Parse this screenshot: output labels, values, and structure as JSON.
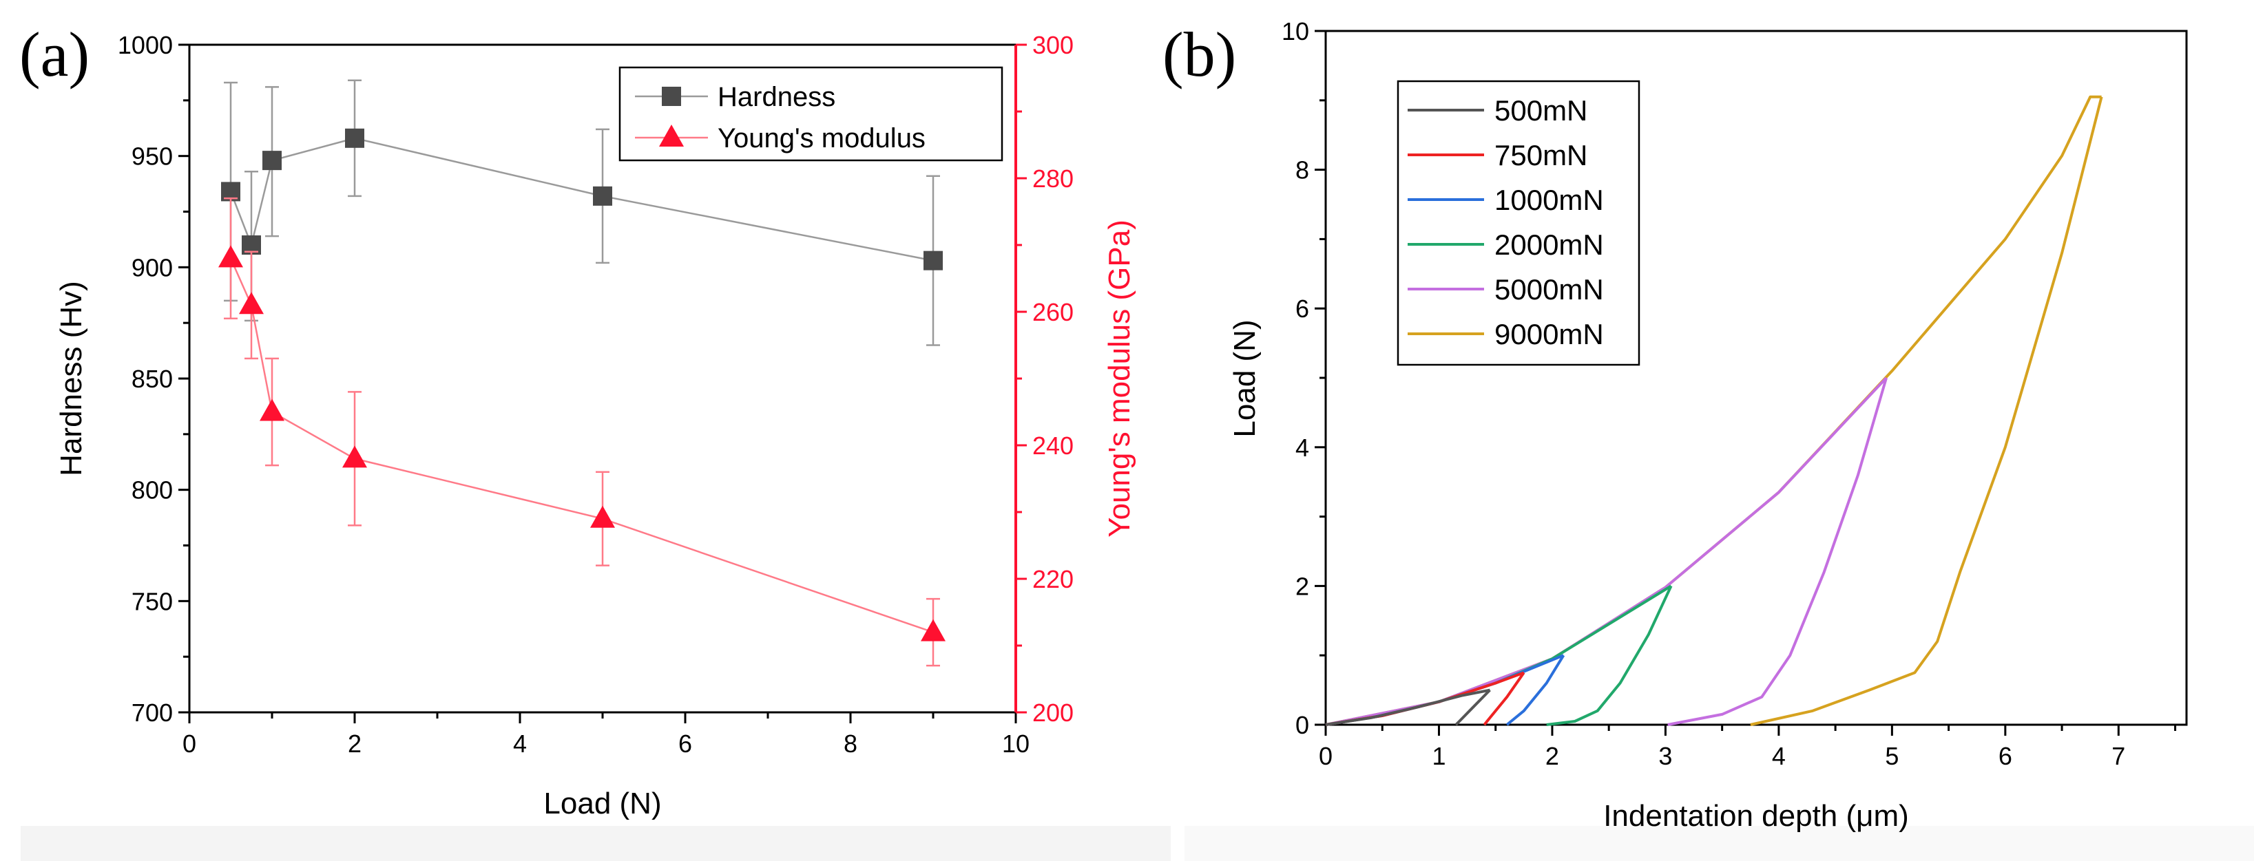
{
  "panels": [
    {
      "id": "a",
      "label": "(a)"
    },
    {
      "id": "b",
      "label": "(b)"
    }
  ],
  "colors": {
    "hardness": "#4a4a4a",
    "hardness_line": "#9a9a9a",
    "modulus": "#ff1030",
    "modulus_line": "#ff7a88",
    "axis": "#000000"
  },
  "chart_data": [
    {
      "type": "line",
      "panel": "(a)",
      "xlabel": "Load (N)",
      "ylabel": "Hardness (Hv)",
      "y2label": "Young's modulus (GPa)",
      "xlim": [
        0,
        10
      ],
      "ylim": [
        700,
        1000
      ],
      "y2lim": [
        200,
        300
      ],
      "xticks": [
        "0",
        "2",
        "4",
        "6",
        "8",
        "10"
      ],
      "yticks": [
        "700",
        "750",
        "800",
        "850",
        "900",
        "950",
        "1000"
      ],
      "y2ticks": [
        "200",
        "220",
        "240",
        "260",
        "280",
        "300"
      ],
      "legend_position": "top-right",
      "series": [
        {
          "name": "Hardness",
          "axis": "left",
          "marker": "square",
          "x": [
            0.5,
            0.75,
            1,
            2,
            5,
            9
          ],
          "values": [
            934,
            910,
            948,
            958,
            932,
            903
          ],
          "err_lo": [
            49,
            34,
            34,
            26,
            30,
            38
          ],
          "err_hi": [
            49,
            33,
            33,
            26,
            30,
            38
          ]
        },
        {
          "name": "Young's modulus",
          "axis": "right",
          "marker": "triangle",
          "x": [
            0.5,
            0.75,
            1,
            2,
            5,
            9
          ],
          "values": [
            268,
            261,
            245,
            238,
            229,
            212
          ],
          "err_lo": [
            9,
            8,
            8,
            10,
            7,
            5
          ],
          "err_hi": [
            9,
            8,
            8,
            10,
            7,
            5
          ]
        }
      ]
    },
    {
      "type": "line",
      "panel": "(b)",
      "xlabel": "Indentation depth (μm)",
      "ylabel": "Load (N)",
      "xlim": [
        0,
        7.6
      ],
      "ylim": [
        0,
        10
      ],
      "xticks": [
        "0",
        "1",
        "2",
        "3",
        "4",
        "5",
        "6",
        "7"
      ],
      "yticks": [
        "0",
        "2",
        "4",
        "6",
        "8",
        "10"
      ],
      "legend_position": "top-left",
      "series": [
        {
          "name": "500mN",
          "color": "#555555",
          "loading": [
            [
              0,
              0
            ],
            [
              0.4,
              0.1
            ],
            [
              0.8,
              0.25
            ],
            [
              1.2,
              0.42
            ],
            [
              1.45,
              0.5
            ]
          ],
          "unloading": [
            [
              1.45,
              0.5
            ],
            [
              1.3,
              0.25
            ],
            [
              1.18,
              0.05
            ],
            [
              1.15,
              0
            ]
          ]
        },
        {
          "name": "750mN",
          "color": "#ee2222",
          "loading": [
            [
              0,
              0
            ],
            [
              0.5,
              0.13
            ],
            [
              1.0,
              0.33
            ],
            [
              1.5,
              0.6
            ],
            [
              1.75,
              0.75
            ]
          ],
          "unloading": [
            [
              1.75,
              0.75
            ],
            [
              1.6,
              0.4
            ],
            [
              1.45,
              0.1
            ],
            [
              1.4,
              0
            ]
          ]
        },
        {
          "name": "1000mN",
          "color": "#2a6fdb",
          "loading": [
            [
              0,
              0
            ],
            [
              0.5,
              0.13
            ],
            [
              1.0,
              0.33
            ],
            [
              1.5,
              0.6
            ],
            [
              2.1,
              1.0
            ]
          ],
          "unloading": [
            [
              2.1,
              1.0
            ],
            [
              1.95,
              0.6
            ],
            [
              1.75,
              0.2
            ],
            [
              1.6,
              0
            ]
          ]
        },
        {
          "name": "2000mN",
          "color": "#21a86b",
          "loading": [
            [
              0,
              0
            ],
            [
              0.5,
              0.13
            ],
            [
              1.0,
              0.33
            ],
            [
              1.5,
              0.6
            ],
            [
              2.0,
              0.95
            ],
            [
              2.5,
              1.45
            ],
            [
              3.05,
              2.0
            ]
          ],
          "unloading": [
            [
              3.05,
              2.0
            ],
            [
              2.85,
              1.3
            ],
            [
              2.6,
              0.6
            ],
            [
              2.4,
              0.2
            ],
            [
              2.2,
              0.05
            ],
            [
              1.95,
              0
            ]
          ]
        },
        {
          "name": "5000mN",
          "color": "#c46fe0",
          "loading": [
            [
              0,
              0
            ],
            [
              1.0,
              0.33
            ],
            [
              2.0,
              0.95
            ],
            [
              3.0,
              1.98
            ],
            [
              4.0,
              3.35
            ],
            [
              4.95,
              5.0
            ]
          ],
          "unloading": [
            [
              4.95,
              5.0
            ],
            [
              4.7,
              3.6
            ],
            [
              4.4,
              2.2
            ],
            [
              4.1,
              1.0
            ],
            [
              3.85,
              0.4
            ],
            [
              3.5,
              0.15
            ],
            [
              3.02,
              0
            ]
          ]
        },
        {
          "name": "9000mN",
          "color": "#d6a21f",
          "loading": [
            [
              0,
              0
            ],
            [
              1.0,
              0.33
            ],
            [
              2.0,
              0.95
            ],
            [
              3.0,
              1.98
            ],
            [
              4.0,
              3.35
            ],
            [
              5.0,
              5.1
            ],
            [
              6.0,
              7.0
            ],
            [
              6.5,
              8.2
            ],
            [
              6.75,
              9.05
            ],
            [
              6.85,
              9.05
            ]
          ],
          "unloading": [
            [
              6.85,
              9.05
            ],
            [
              6.5,
              6.8
            ],
            [
              6.0,
              4.0
            ],
            [
              5.6,
              2.2
            ],
            [
              5.4,
              1.2
            ],
            [
              5.2,
              0.75
            ],
            [
              4.8,
              0.5
            ],
            [
              4.3,
              0.2
            ],
            [
              3.75,
              0
            ]
          ]
        }
      ]
    }
  ]
}
